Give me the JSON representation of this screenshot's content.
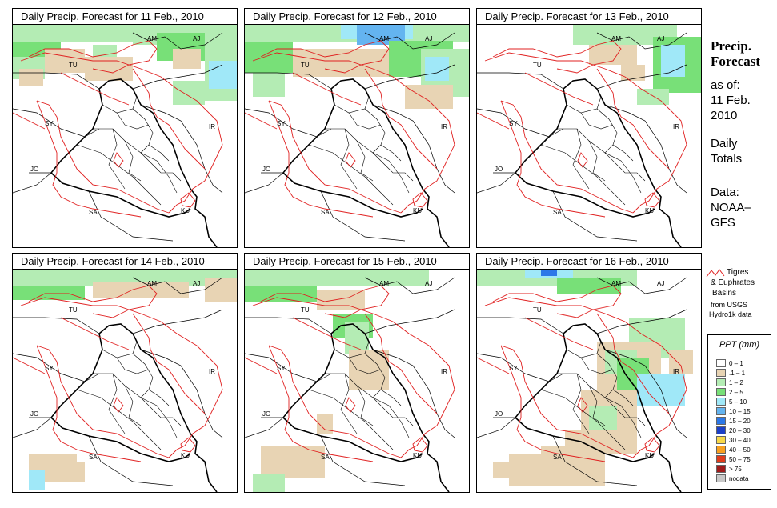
{
  "panels": [
    {
      "title": "Daily Precip. Forecast for  11 Feb., 2010"
    },
    {
      "title": "Daily Precip. Forecast for  12 Feb., 2010"
    },
    {
      "title": "Daily Precip. Forecast for  13 Feb., 2010"
    },
    {
      "title": "Daily Precip. Forecast for  14 Feb., 2010"
    },
    {
      "title": "Daily Precip. Forecast for  15 Feb., 2010"
    },
    {
      "title": "Daily Precip. Forecast for  16 Feb., 2010"
    }
  ],
  "country_labels": [
    "AM",
    "AJ",
    "TU",
    "SY",
    "IR",
    "JO",
    "SA",
    "KU"
  ],
  "side": {
    "title_line1": "Precip.",
    "title_line2": "Forecast",
    "asof": "as of:",
    "date_line1": "11 Feb.",
    "date_line2": "2010",
    "daily_line1": "Daily",
    "daily_line2": "Totals",
    "data_line1": "Data:",
    "data_line2": "NOAA–",
    "data_line3": "GFS"
  },
  "basin_legend": {
    "line1": "Tigres",
    "line2": "& Euphrates",
    "line3": "Basins",
    "line4": "from USGS",
    "line5": "Hydro1k data",
    "color": "#e02020"
  },
  "legend": {
    "title": "PPT (mm)",
    "items": [
      {
        "label": "0 – 1",
        "color": "#ffffff"
      },
      {
        "label": ".1 – 1",
        "color": "#e8d4b4"
      },
      {
        "label": "1 – 2",
        "color": "#b4ecb4"
      },
      {
        "label": "2 – 5",
        "color": "#78e078"
      },
      {
        "label": "5 – 10",
        "color": "#a0e8f8"
      },
      {
        "label": "10 – 15",
        "color": "#64b4f0"
      },
      {
        "label": "15 – 20",
        "color": "#2c78e8"
      },
      {
        "label": "20 – 30",
        "color": "#1c40c8"
      },
      {
        "label": "30 – 40",
        "color": "#f8d848"
      },
      {
        "label": "40 – 50",
        "color": "#f8a020"
      },
      {
        "label": "50 – 75",
        "color": "#e03c1c"
      },
      {
        "label": "> 75",
        "color": "#a01c1c"
      },
      {
        "label": "nodata",
        "color": "#c8c8c8"
      }
    ]
  }
}
